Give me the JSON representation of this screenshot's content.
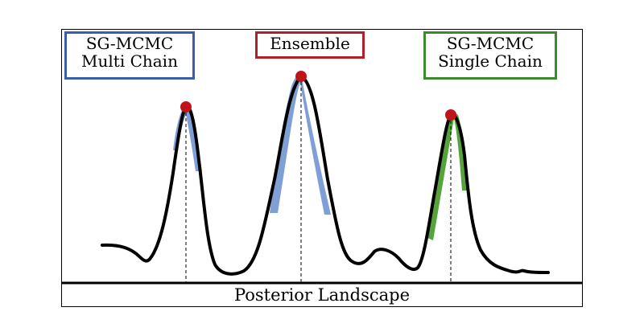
{
  "labels": {
    "multi_chain": {
      "line1": "SG-MCMC",
      "line2": "Multi Chain"
    },
    "ensemble": "Ensemble",
    "single_chain": {
      "line1": "SG-MCMC",
      "line2": "Single Chain"
    },
    "x_axis": "Posterior Landscape"
  },
  "colors": {
    "multi_chain_border": "#3b5ea8",
    "ensemble_border": "#b0202a",
    "single_chain_border": "#3d8a2e",
    "mode_marker": "#c0141a",
    "multi_chain_samples": "#7f9fd6",
    "single_chain_samples": "#55a33a",
    "curve": "#000000"
  }
}
